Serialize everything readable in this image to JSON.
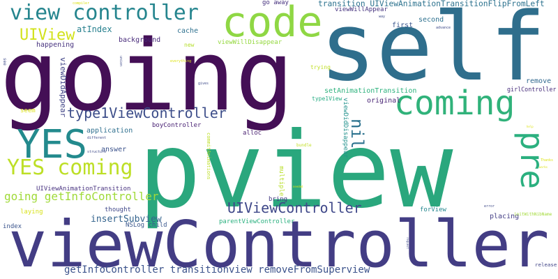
{
  "words": [
    {
      "text": "pview",
      "color": "#2aa77d"
    },
    {
      "text": "going",
      "color": "#440f56"
    },
    {
      "text": "self",
      "color": "#2f6e8c"
    },
    {
      "text": "viewController",
      "color": "#433d84"
    },
    {
      "text": "code",
      "color": "#8fd744"
    },
    {
      "text": "coming",
      "color": "#30b27a"
    },
    {
      "text": "view controller",
      "color": "#25858e"
    },
    {
      "text": "YES",
      "color": "#238a8d"
    },
    {
      "text": "YES coming",
      "color": "#bddf26"
    },
    {
      "text": "type1ViewController",
      "color": "#3d4e8a"
    },
    {
      "text": "pre",
      "color": "#2bb07f"
    },
    {
      "text": "nil",
      "color": "#2c728e"
    },
    {
      "text": "UIViewController",
      "color": "#3f4889"
    },
    {
      "text": "going getInfoController",
      "color": "#a0da39"
    },
    {
      "text": "UIView",
      "color": "#d2e21b"
    },
    {
      "text": "transition UIViewAnimationTransitionFlipFromLeft",
      "color": "#2c728e"
    },
    {
      "text": "view removeFromSuperview",
      "color": "#3b528b"
    },
    {
      "text": "getInfoController transition",
      "color": "#3b528b"
    },
    {
      "text": "insertSubview",
      "color": "#33638d"
    },
    {
      "text": "atIndex",
      "color": "#27808e"
    },
    {
      "text": "happening",
      "color": "#46327e"
    },
    {
      "text": "background",
      "color": "#472a7a"
    },
    {
      "text": "cache",
      "color": "#2d708e"
    },
    {
      "text": "viewWillDisappear",
      "color": "#95d840"
    },
    {
      "text": "viewWillAppear",
      "color": "#46337f"
    },
    {
      "text": "go away",
      "color": "#46317e"
    },
    {
      "text": "first",
      "color": "#39558c"
    },
    {
      "text": "second",
      "color": "#2d708e"
    },
    {
      "text": "remove",
      "color": "#31688e"
    },
    {
      "text": "girlController",
      "color": "#472d7b"
    },
    {
      "text": "setAnimationTransition",
      "color": "#2db27d"
    },
    {
      "text": "original",
      "color": "#482374"
    },
    {
      "text": "viewDidAppear",
      "color": "#414487"
    },
    {
      "text": "viewDidDisappear",
      "color": "#21918c"
    },
    {
      "text": "type1View",
      "color": "#25ab82"
    },
    {
      "text": "boyController",
      "color": "#482173"
    },
    {
      "text": "alloc",
      "color": "#481f70"
    },
    {
      "text": "application",
      "color": "#2e6f8e"
    },
    {
      "text": "answer",
      "color": "#3b528b"
    },
    {
      "text": "seem",
      "color": "#dde318"
    },
    {
      "text": "UIViewAnimationTransition",
      "color": "#46307e"
    },
    {
      "text": "thought",
      "color": "#3f4788"
    },
    {
      "text": "laying",
      "color": "#d8e219"
    },
    {
      "text": "index",
      "color": "#3a548c"
    },
    {
      "text": "NSLog child",
      "color": "#39568c"
    },
    {
      "text": "parentViewController",
      "color": "#2ab07f"
    },
    {
      "text": "bring",
      "color": "#443a83"
    },
    {
      "text": "multiple",
      "color": "#b8de29"
    },
    {
      "text": "placing",
      "color": "#433e85"
    },
    {
      "text": "forView",
      "color": "#24868e"
    },
    {
      "text": "release",
      "color": "#414487"
    },
    {
      "text": "initWithNibName",
      "color": "#a2da37"
    },
    {
      "text": "commitAnimations",
      "color": "#bddf26"
    },
    {
      "text": "new",
      "color": "#b5de2b"
    },
    {
      "text": "trying",
      "color": "#c0df25"
    },
    {
      "text": "bundle",
      "color": "#c2df23"
    },
    {
      "text": "see",
      "color": "#3e4a89"
    },
    {
      "text": "compiler",
      "color": "#dde318"
    },
    {
      "text": "way",
      "color": "#3e4a89"
    },
    {
      "text": "advance",
      "color": "#3e4a89"
    },
    {
      "text": "union",
      "color": "#3e4a89"
    },
    {
      "text": "everything",
      "color": "#dde318"
    },
    {
      "text": "gives",
      "color": "#3e4a89"
    },
    {
      "text": "different",
      "color": "#3e4a89"
    },
    {
      "text": "structure",
      "color": "#3e4a89"
    },
    {
      "text": "help",
      "color": "#dde318"
    },
    {
      "text": "Thanks",
      "color": "#dde318"
    },
    {
      "text": "works",
      "color": "#dde318"
    },
    {
      "text": "needed",
      "color": "#dde318"
    },
    {
      "text": "error",
      "color": "#3e4a89"
    },
    {
      "text": "request",
      "color": "#3e4a89"
    }
  ]
}
